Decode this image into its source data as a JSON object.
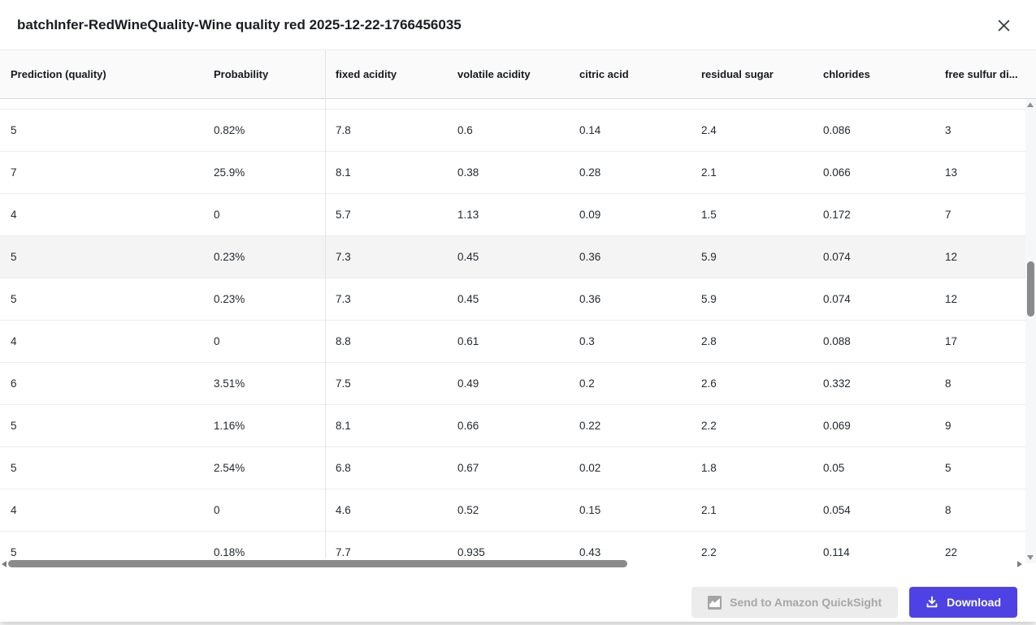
{
  "modal": {
    "title": "batchInfer-RedWineQuality-Wine quality red 2025-12-22-1766456035"
  },
  "table": {
    "columns": [
      {
        "key": "prediction_quality",
        "label": "Prediction (quality)"
      },
      {
        "key": "probability",
        "label": "Probability"
      },
      {
        "key": "fixed_acidity",
        "label": "fixed acidity"
      },
      {
        "key": "volatile_acidity",
        "label": "volatile acidity"
      },
      {
        "key": "citric_acid",
        "label": "citric acid"
      },
      {
        "key": "residual_sugar",
        "label": "residual sugar"
      },
      {
        "key": "chlorides",
        "label": "chlorides"
      },
      {
        "key": "free_sulfur_dioxide",
        "label": "free sulfur di..."
      }
    ],
    "rows": [
      {
        "highlighted": false,
        "values": [
          "5",
          "0.82%",
          "7.8",
          "0.6",
          "0.14",
          "2.4",
          "0.086",
          "3"
        ]
      },
      {
        "highlighted": false,
        "values": [
          "7",
          "25.9%",
          "8.1",
          "0.38",
          "0.28",
          "2.1",
          "0.066",
          "13"
        ]
      },
      {
        "highlighted": false,
        "values": [
          "4",
          "0",
          "5.7",
          "1.13",
          "0.09",
          "1.5",
          "0.172",
          "7"
        ]
      },
      {
        "highlighted": true,
        "values": [
          "5",
          "0.23%",
          "7.3",
          "0.45",
          "0.36",
          "5.9",
          "0.074",
          "12"
        ]
      },
      {
        "highlighted": false,
        "values": [
          "5",
          "0.23%",
          "7.3",
          "0.45",
          "0.36",
          "5.9",
          "0.074",
          "12"
        ]
      },
      {
        "highlighted": false,
        "values": [
          "4",
          "0",
          "8.8",
          "0.61",
          "0.3",
          "2.8",
          "0.088",
          "17"
        ]
      },
      {
        "highlighted": false,
        "values": [
          "6",
          "3.51%",
          "7.5",
          "0.49",
          "0.2",
          "2.6",
          "0.332",
          "8"
        ]
      },
      {
        "highlighted": false,
        "values": [
          "5",
          "1.16%",
          "8.1",
          "0.66",
          "0.22",
          "2.2",
          "0.069",
          "9"
        ]
      },
      {
        "highlighted": false,
        "values": [
          "5",
          "2.54%",
          "6.8",
          "0.67",
          "0.02",
          "1.8",
          "0.05",
          "5"
        ]
      },
      {
        "highlighted": false,
        "values": [
          "4",
          "0",
          "4.6",
          "0.52",
          "0.15",
          "2.1",
          "0.054",
          "8"
        ]
      },
      {
        "highlighted": false,
        "values": [
          "5",
          "0.18%",
          "7.7",
          "0.935",
          "0.43",
          "2.2",
          "0.114",
          "22"
        ]
      }
    ]
  },
  "footer": {
    "quicksight_button_label": "Send to Amazon QuickSight",
    "download_button_label": "Download"
  },
  "icons": {
    "close": "close-icon",
    "quicksight": "quicksight-icon",
    "download": "download-icon"
  },
  "colors": {
    "accent": "#4e42e4",
    "header_bg": "#fafafa",
    "highlight_row_bg": "#f4f4f4",
    "scrollbar_thumb": "#8a8a8a",
    "disabled_button_bg": "#ececec",
    "disabled_button_text": "#a7a7a7"
  }
}
